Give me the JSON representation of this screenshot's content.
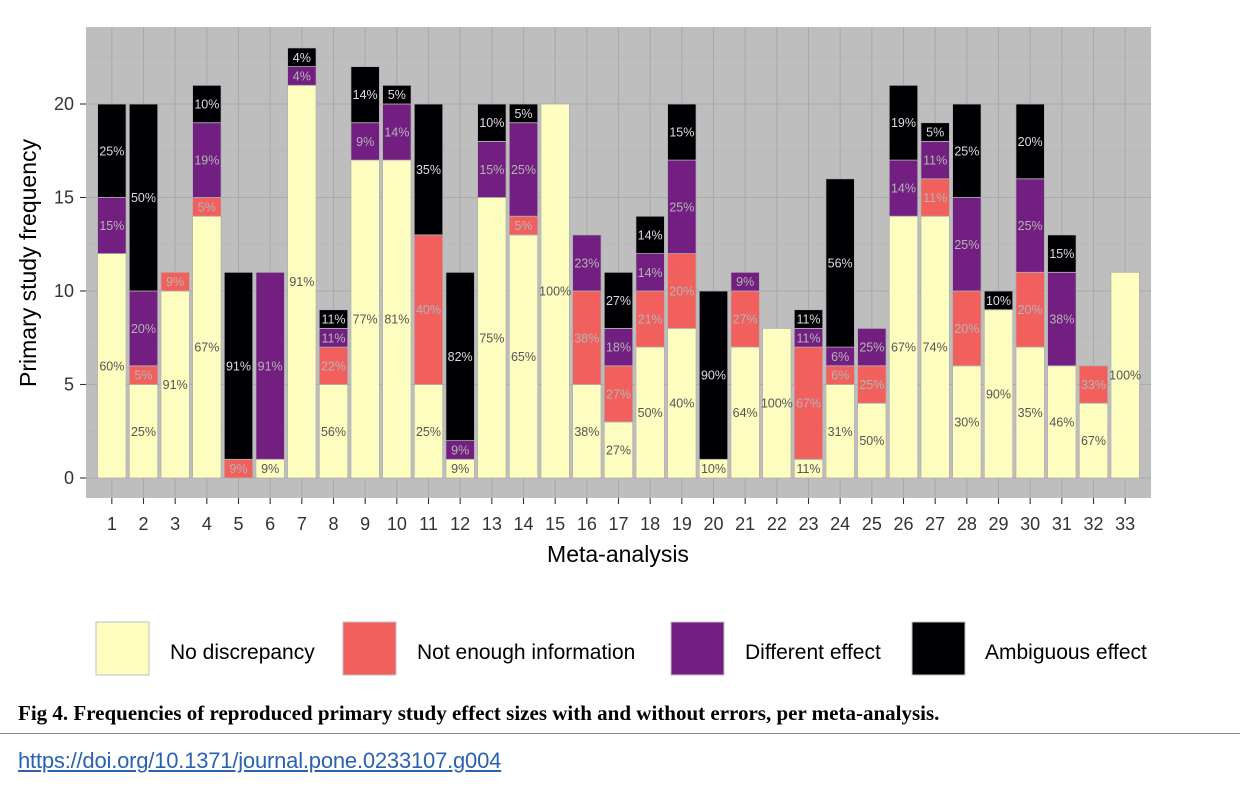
{
  "chart_data": {
    "type": "stacked-bar",
    "xlabel": "Meta-analysis",
    "ylabel": "Primary study frequency",
    "ylim": [
      0,
      23.5
    ],
    "yticks": [
      0,
      5,
      10,
      15,
      20
    ],
    "categories": [
      "1",
      "2",
      "3",
      "4",
      "5",
      "6",
      "7",
      "8",
      "9",
      "10",
      "11",
      "12",
      "13",
      "14",
      "15",
      "16",
      "17",
      "18",
      "19",
      "20",
      "21",
      "22",
      "23",
      "24",
      "25",
      "26",
      "27",
      "28",
      "29",
      "30",
      "31",
      "32",
      "33"
    ],
    "series": [
      {
        "name": "No discrepancy",
        "color": "#FCFDBF",
        "values": [
          12,
          5,
          10,
          14,
          0,
          1,
          21,
          5,
          17,
          17,
          5,
          1,
          15,
          13,
          20,
          5,
          3,
          7,
          8,
          1,
          7,
          8,
          1,
          5,
          4,
          14,
          14,
          6,
          9,
          7,
          6,
          4,
          11
        ],
        "labels": [
          "60%",
          "25%",
          "91%",
          "67%",
          "",
          "9%",
          "91%",
          "56%",
          "77%",
          "81%",
          "25%",
          "9%",
          "75%",
          "65%",
          "100%",
          "38%",
          "27%",
          "50%",
          "40%",
          "10%",
          "64%",
          "100%",
          "11%",
          "31%",
          "50%",
          "67%",
          "74%",
          "30%",
          "90%",
          "35%",
          "46%",
          "67%",
          "100%"
        ]
      },
      {
        "name": "Not enough information",
        "color": "#F1605D",
        "values": [
          0,
          1,
          1,
          1,
          1,
          0,
          0,
          2,
          0,
          0,
          8,
          0,
          0,
          1,
          0,
          5,
          3,
          3,
          4,
          0,
          3,
          0,
          6,
          1,
          2,
          0,
          2,
          4,
          0,
          4,
          0,
          2,
          0
        ],
        "labels": [
          "",
          "5%",
          "9%",
          "5%",
          "9%",
          "",
          "",
          "22%",
          "",
          "",
          "40%",
          "",
          "",
          "5%",
          "",
          "38%",
          "27%",
          "21%",
          "20%",
          "",
          "27%",
          "",
          "67%",
          "6%",
          "25%",
          "",
          "11%",
          "20%",
          "",
          "20%",
          "",
          "33%",
          ""
        ]
      },
      {
        "name": "Different effect",
        "color": "#721F81",
        "values": [
          3,
          4,
          0,
          4,
          0,
          10,
          1,
          1,
          2,
          3,
          0,
          1,
          3,
          5,
          0,
          3,
          2,
          2,
          5,
          0,
          1,
          0,
          1,
          1,
          2,
          3,
          2,
          5,
          0,
          5,
          5,
          0,
          0
        ],
        "labels": [
          "15%",
          "20%",
          "",
          "19%",
          "",
          "91%",
          "4%",
          "11%",
          "9%",
          "14%",
          "",
          "9%",
          "15%",
          "25%",
          "",
          "23%",
          "18%",
          "14%",
          "25%",
          "",
          "9%",
          "",
          "11%",
          "6%",
          "25%",
          "14%",
          "11%",
          "25%",
          "",
          "25%",
          "38%",
          "",
          ""
        ]
      },
      {
        "name": "Ambiguous effect",
        "color": "#000004",
        "values": [
          5,
          10,
          0,
          2,
          10,
          0,
          1,
          1,
          3,
          1,
          7,
          9,
          2,
          1,
          0,
          0,
          3,
          2,
          3,
          9,
          0,
          0,
          1,
          9,
          0,
          4,
          1,
          5,
          1,
          4,
          2,
          0,
          0
        ],
        "labels": [
          "25%",
          "50%",
          "",
          "10%",
          "91%",
          "",
          "4%",
          "11%",
          "14%",
          "5%",
          "35%",
          "82%",
          "10%",
          "5%",
          "",
          "",
          "27%",
          "14%",
          "15%",
          "90%",
          "",
          "",
          "11%",
          "56%",
          "",
          "19%",
          "5%",
          "25%",
          "10%",
          "20%",
          "15%",
          "",
          ""
        ]
      }
    ]
  },
  "caption": "Fig 4.  Frequencies of reproduced primary study effect sizes with and without errors, per meta-analysis.",
  "doi": "https://doi.org/10.1371/journal.pone.0233107.g004"
}
